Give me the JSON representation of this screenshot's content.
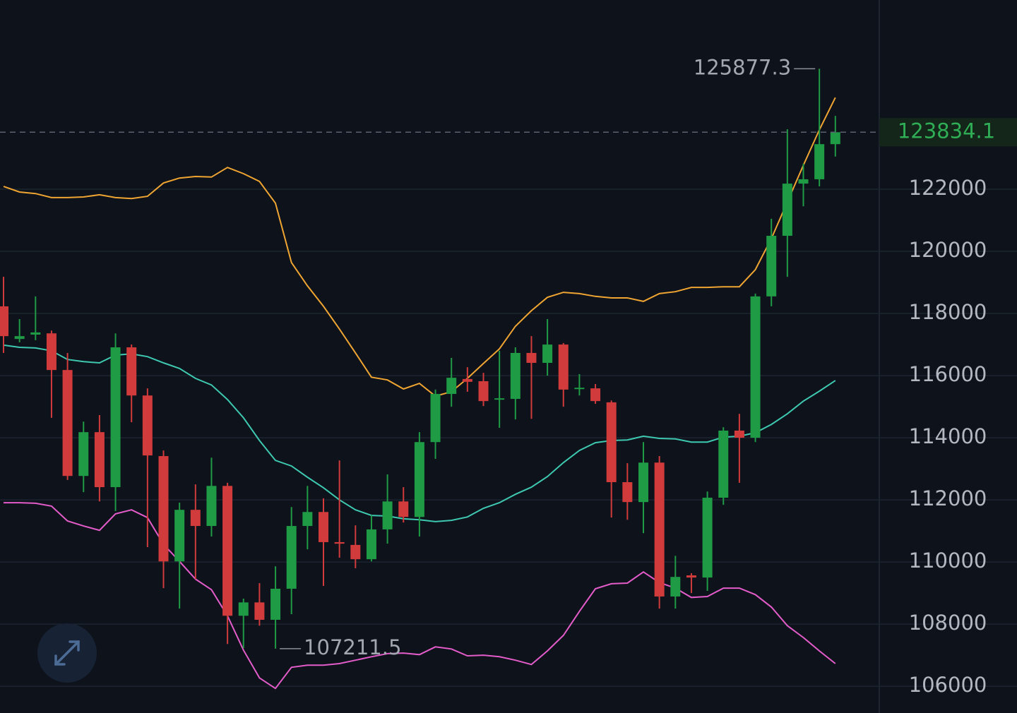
{
  "chart_data": {
    "type": "candlestick",
    "open": [
      118230,
      117180,
      117320,
      117360,
      116180,
      112770,
      114180,
      112410,
      116910,
      115360,
      113410,
      110020,
      111680,
      111160,
      112450,
      108270,
      108700,
      108140,
      109140,
      111160,
      111610,
      110640,
      110550,
      110090,
      111050,
      111950,
      111450,
      113860,
      115410,
      115890,
      115820,
      115230,
      115250,
      116730,
      116410,
      117000,
      115570,
      115590,
      115140,
      112570,
      111930,
      113200,
      108890,
      109570,
      109500,
      112070,
      114230,
      114000,
      118550,
      120500,
      122180,
      122320,
      123450
    ],
    "high": [
      119180,
      117820,
      118550,
      117450,
      116730,
      114520,
      114730,
      117360,
      117000,
      115590,
      113590,
      111910,
      112500,
      113360,
      112550,
      108820,
      109320,
      109860,
      111770,
      112450,
      112050,
      113270,
      111180,
      111500,
      112820,
      112410,
      114180,
      115550,
      116570,
      116270,
      116090,
      116800,
      116910,
      117270,
      117820,
      117050,
      116050,
      115730,
      115200,
      113180,
      113860,
      113410,
      110200,
      109640,
      112270,
      114340,
      114770,
      118640,
      121050,
      123930,
      122820,
      125877.3,
      124360
    ],
    "low": [
      116730,
      117070,
      117140,
      114640,
      112640,
      112250,
      111950,
      111640,
      114500,
      110480,
      109160,
      108500,
      109450,
      110820,
      107360,
      107230,
      107950,
      107211.5,
      108320,
      110410,
      109230,
      110140,
      109800,
      110020,
      110590,
      111270,
      110820,
      113320,
      115000,
      115480,
      115020,
      114320,
      114590,
      114610,
      116000,
      115000,
      115360,
      115090,
      111430,
      111360,
      110930,
      108500,
      108500,
      109000,
      109070,
      111840,
      112550,
      113860,
      118230,
      119180,
      121450,
      122090,
      123050
    ],
    "close": [
      117270,
      117270,
      117390,
      116180,
      112770,
      114180,
      112410,
      116910,
      115360,
      113430,
      110020,
      111680,
      111160,
      112450,
      108270,
      108700,
      108140,
      109140,
      111160,
      111610,
      110640,
      110590,
      110090,
      111050,
      111950,
      111450,
      113860,
      115410,
      115930,
      115800,
      115180,
      115270,
      116730,
      116410,
      117000,
      115550,
      115610,
      115180,
      112570,
      111930,
      113200,
      108890,
      109520,
      109500,
      112070,
      114230,
      114000,
      118550,
      120500,
      122180,
      122320,
      123450,
      123834.1
    ],
    "up_color": "#1f9a45",
    "down_color": "#d13b3b",
    "lines": [
      {
        "color": "#f0a532",
        "values": [
          122090,
          121910,
          121860,
          121730,
          121730,
          121750,
          121820,
          121730,
          121700,
          121770,
          122200,
          122360,
          122410,
          122390,
          122700,
          122500,
          122250,
          121550,
          119640,
          118890,
          118230,
          117500,
          116730,
          115950,
          115860,
          115570,
          115750,
          115340,
          115480,
          115910,
          116390,
          116860,
          117590,
          118090,
          118520,
          118680,
          118640,
          118550,
          118500,
          118500,
          118390,
          118640,
          118700,
          118840,
          118840,
          118860,
          118860,
          119410,
          120410,
          121590,
          122770,
          123910,
          124950
        ]
      },
      {
        "color": "#3ec8b0",
        "values": [
          116980,
          116910,
          116890,
          116800,
          116520,
          116450,
          116410,
          116660,
          116700,
          116610,
          116410,
          116230,
          115910,
          115700,
          115230,
          114640,
          113910,
          113270,
          113090,
          112730,
          112390,
          112000,
          111680,
          111500,
          111480,
          111390,
          111360,
          111300,
          111340,
          111450,
          111730,
          111910,
          112180,
          112410,
          112750,
          113200,
          113590,
          113840,
          113910,
          113930,
          114050,
          113980,
          113960,
          113860,
          113860,
          114020,
          114050,
          114160,
          114430,
          114770,
          115180,
          115500,
          115840
        ]
      },
      {
        "color": "#e35cc9",
        "values": [
          111910,
          111910,
          111890,
          111800,
          111320,
          111160,
          111020,
          111550,
          111680,
          111430,
          110570,
          110020,
          109450,
          109110,
          108270,
          107160,
          106270,
          105930,
          106610,
          106680,
          106680,
          106730,
          106840,
          106950,
          107050,
          107070,
          107020,
          107270,
          107200,
          106980,
          107000,
          106950,
          106840,
          106700,
          107140,
          107640,
          108410,
          109140,
          109300,
          109320,
          109680,
          109340,
          109160,
          108860,
          108890,
          109160,
          109160,
          108950,
          108550,
          107950,
          107570,
          107140,
          106730
        ]
      }
    ],
    "ylim": [
      105140,
      128090
    ],
    "yticks": [
      106000,
      108000,
      110000,
      112000,
      114000,
      116000,
      118000,
      120000,
      122000
    ],
    "grid": true
  }
}
